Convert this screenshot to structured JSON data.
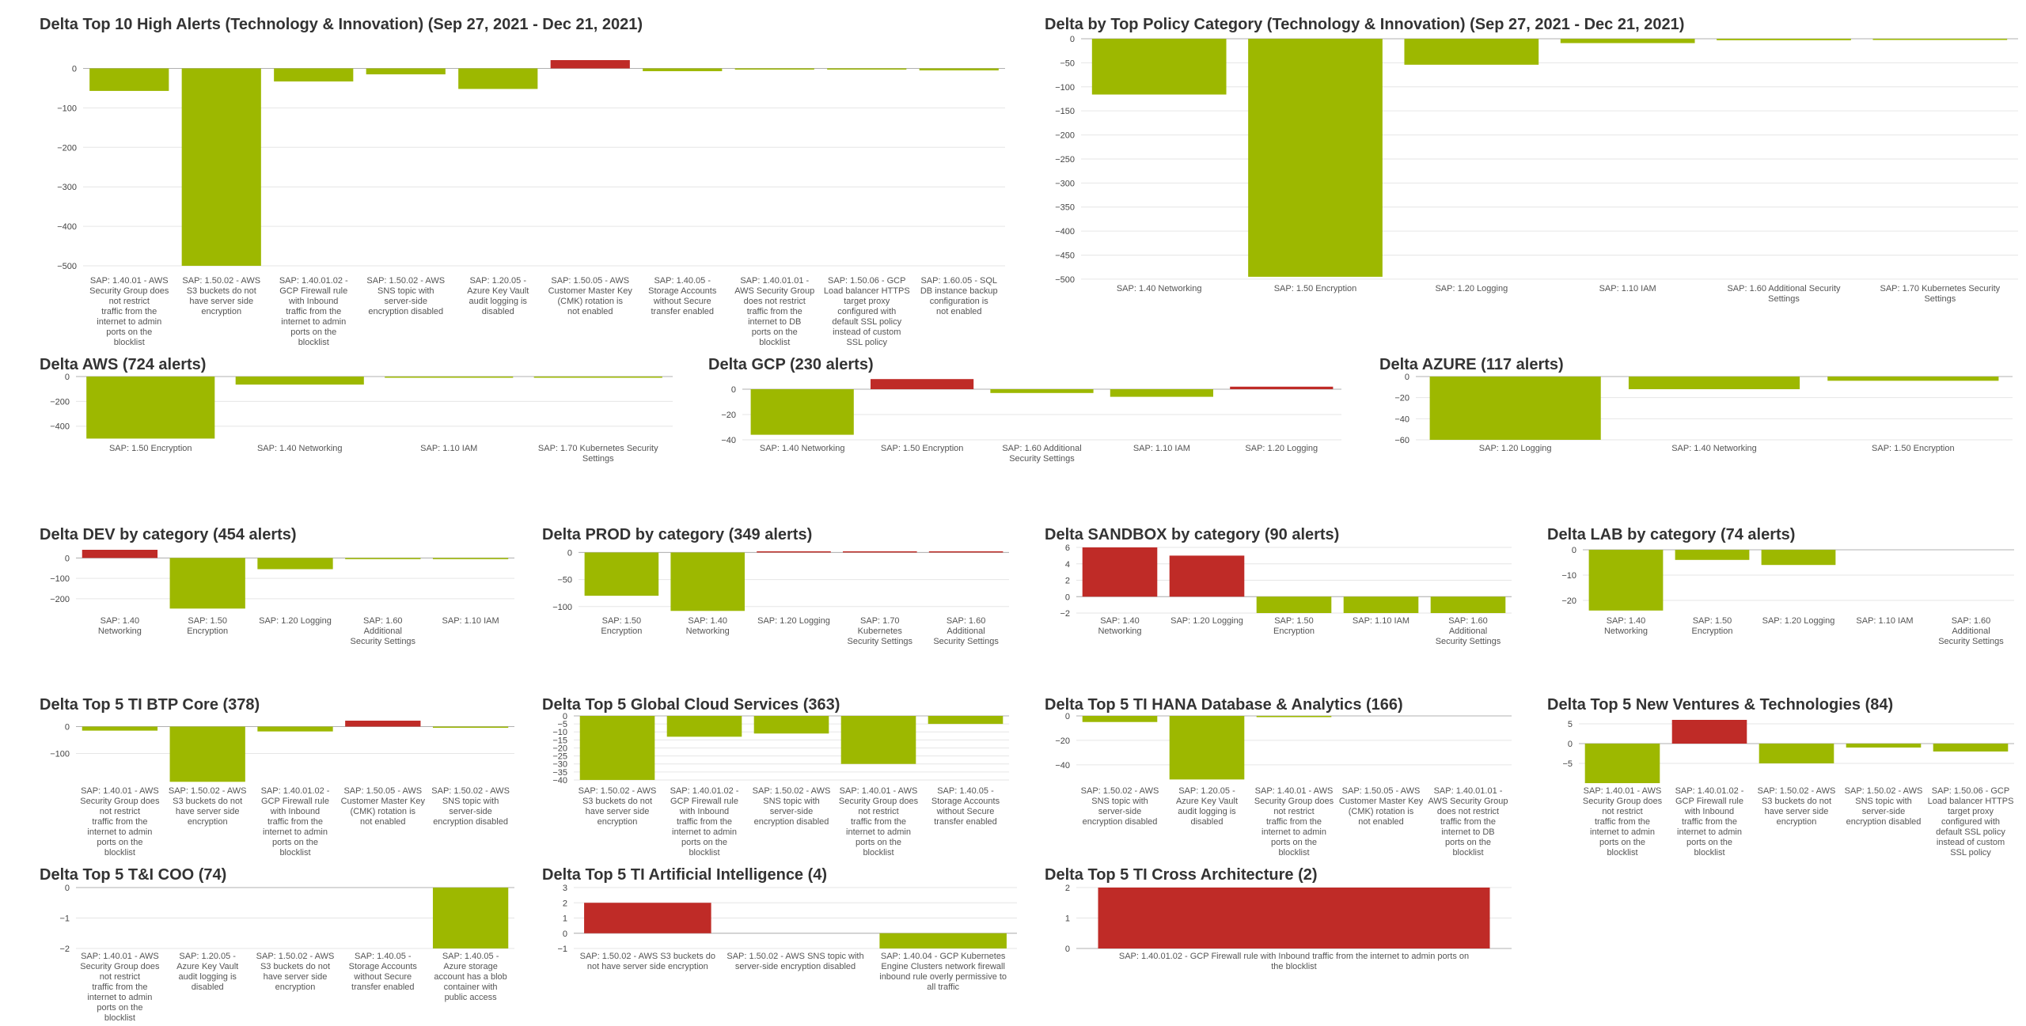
{
  "colors": {
    "negative": "#9db800",
    "positive": "#bf2b27",
    "grid": "#e6e6e6",
    "baseline": "#b0b0b0"
  },
  "chart_data": [
    {
      "type": "bar",
      "title": "Delta Top 10 High Alerts (Technology & Innovation) (Sep 27, 2021 - Dec 21, 2021)",
      "categories": [
        "SAP: 1.40.01 - AWS Security Group does not restrict traffic from the internet to admin ports on the blocklist",
        "SAP: 1.50.02 - AWS S3 buckets do not have server side encryption",
        "SAP: 1.40.01.02 - GCP Firewall rule with Inbound traffic from the internet to admin ports on the blocklist",
        "SAP: 1.50.02 - AWS SNS topic with server-side encryption disabled",
        "SAP: 1.20.05 - Azure Key Vault audit logging is disabled",
        "SAP: 1.50.05 - AWS Customer Master Key (CMK) rotation is not enabled",
        "SAP: 1.40.05 - Storage Accounts without Secure transfer enabled",
        "SAP: 1.40.01.01 - AWS Security Group does not restrict traffic from the internet to DB ports on the blocklist",
        "SAP: 1.50.06 - GCP Load balancer HTTPS target proxy configured with default SSL policy instead of custom SSL policy",
        "SAP: 1.60.05 - SQL DB instance backup configuration is not enabled"
      ],
      "values": [
        -57,
        -500,
        -33,
        -15,
        -52,
        21,
        -7,
        -2,
        -2,
        -5
      ],
      "yticks": [
        0,
        -100,
        -200,
        -300,
        -400,
        -500
      ]
    },
    {
      "type": "bar",
      "title": "Delta by Top Policy Category (Technology & Innovation) (Sep 27, 2021 - Dec 21, 2021)",
      "categories": [
        "SAP: 1.40 Networking",
        "SAP: 1.50 Encryption",
        "SAP: 1.20 Logging",
        "SAP: 1.10 IAM",
        "SAP: 1.60 Additional Security Settings",
        "SAP: 1.70 Kubernetes Security Settings"
      ],
      "values": [
        -116,
        -495,
        -54,
        -9,
        -3,
        -1
      ],
      "yticks": [
        0,
        -50,
        -100,
        -150,
        -200,
        -250,
        -300,
        -350,
        -400,
        -450,
        -500
      ]
    },
    {
      "type": "bar",
      "title": "Delta AWS (724 alerts)",
      "categories": [
        "SAP: 1.50 Encryption",
        "SAP: 1.40 Networking",
        "SAP: 1.10 IAM",
        "SAP: 1.70 Kubernetes Security Settings"
      ],
      "values": [
        -500,
        -65,
        -5,
        -2
      ],
      "yticks": [
        0,
        -200,
        -400
      ]
    },
    {
      "type": "bar",
      "title": "Delta GCP (230 alerts)",
      "categories": [
        "SAP: 1.40 Networking",
        "SAP: 1.50 Encryption",
        "SAP: 1.60 Additional Security Settings",
        "SAP: 1.10 IAM",
        "SAP: 1.20 Logging"
      ],
      "values": [
        -36,
        8,
        -3,
        -6,
        2
      ],
      "yticks": [
        0,
        -20,
        -40
      ]
    },
    {
      "type": "bar",
      "title": "Delta AZURE (117 alerts)",
      "categories": [
        "SAP: 1.20 Logging",
        "SAP: 1.40 Networking",
        "SAP: 1.50 Encryption"
      ],
      "values": [
        -60,
        -12,
        -4
      ],
      "yticks": [
        0,
        -20,
        -40,
        -60
      ]
    },
    {
      "type": "bar",
      "title": "Delta DEV by category (454 alerts)",
      "categories": [
        "SAP: 1.40 Networking",
        "SAP: 1.50 Encryption",
        "SAP: 1.20 Logging",
        "SAP: 1.60 Additional Security Settings",
        "SAP: 1.10 IAM"
      ],
      "values": [
        40,
        -248,
        -55,
        -4,
        -1
      ],
      "yticks": [
        0,
        -100,
        -200
      ]
    },
    {
      "type": "bar",
      "title": "Delta PROD by category (349 alerts)",
      "categories": [
        "SAP: 1.50 Encryption",
        "SAP: 1.40 Networking",
        "SAP: 1.20 Logging",
        "SAP: 1.70 Kubernetes Security Settings",
        "SAP: 1.60 Additional Security Settings"
      ],
      "values": [
        -80,
        -108,
        2,
        1,
        1
      ],
      "yticks": [
        0,
        -50,
        -100
      ]
    },
    {
      "type": "bar",
      "title": "Delta SANDBOX by category (90 alerts)",
      "categories": [
        "SAP: 1.40 Networking",
        "SAP: 1.20 Logging",
        "SAP: 1.50 Encryption",
        "SAP: 1.10 IAM",
        "SAP: 1.60 Additional Security Settings"
      ],
      "values": [
        6,
        5,
        -2,
        -2,
        -2
      ],
      "yticks": [
        6,
        4,
        2,
        0,
        -2
      ]
    },
    {
      "type": "bar",
      "title": "Delta LAB by category (74 alerts)",
      "categories": [
        "SAP: 1.40 Networking",
        "SAP: 1.50 Encryption",
        "SAP: 1.20 Logging",
        "SAP: 1.10 IAM",
        "SAP: 1.60 Additional Security Settings"
      ],
      "values": [
        -24,
        -4,
        -6,
        0,
        0
      ],
      "yticks": [
        0,
        -10,
        -20
      ]
    },
    {
      "type": "bar",
      "title": "Delta Top 5 TI BTP Core (378)",
      "categories": [
        "SAP: 1.40.01 - AWS Security Group does not restrict traffic from the internet to admin ports on the blocklist",
        "SAP: 1.50.02 - AWS S3 buckets do not have server side encryption",
        "SAP: 1.40.01.02 - GCP Firewall rule with Inbound traffic from the internet to admin ports on the blocklist",
        "SAP: 1.50.05 - AWS Customer Master Key (CMK) rotation is not enabled",
        "SAP: 1.50.02 - AWS SNS topic with server-side encryption disabled"
      ],
      "values": [
        -15,
        -205,
        -18,
        22,
        -3
      ],
      "yticks": [
        0,
        -100
      ]
    },
    {
      "type": "bar",
      "title": "Delta Top 5 Global Cloud Services (363)",
      "categories": [
        "SAP: 1.50.02 - AWS S3 buckets do not have server side encryption",
        "SAP: 1.40.01.02 - GCP Firewall rule with Inbound traffic from the internet to admin ports on the blocklist",
        "SAP: 1.50.02 - AWS SNS topic with server-side encryption disabled",
        "SAP: 1.40.01 - AWS Security Group does not restrict traffic from the internet to admin ports on the blocklist",
        "SAP: 1.40.05 - Storage Accounts without Secure transfer enabled"
      ],
      "values": [
        -40,
        -13,
        -11,
        -30,
        -5
      ],
      "yticks": [
        0,
        -5,
        -10,
        -15,
        -20,
        -25,
        -30,
        -35,
        -40
      ]
    },
    {
      "type": "bar",
      "title": "Delta Top 5 TI HANA Database & Analytics (166)",
      "categories": [
        "SAP: 1.50.02 - AWS SNS topic with server-side encryption disabled",
        "SAP: 1.20.05 - Azure Key Vault audit logging is disabled",
        "SAP: 1.40.01 - AWS Security Group does not restrict traffic from the internet to admin ports on the blocklist",
        "SAP: 1.50.05 - AWS Customer Master Key (CMK) rotation is not enabled",
        "SAP: 1.40.01.01 - AWS Security Group does not restrict traffic from the internet to DB ports on the blocklist"
      ],
      "values": [
        -5,
        -52,
        -1,
        0,
        0
      ],
      "yticks": [
        0,
        -20,
        -40
      ]
    },
    {
      "type": "bar",
      "title": "Delta Top 5 New Ventures & Technologies (84)",
      "categories": [
        "SAP: 1.40.01 - AWS Security Group does not restrict traffic from the internet to admin ports on the blocklist",
        "SAP: 1.40.01.02 - GCP Firewall rule with Inbound traffic from the internet to admin ports on the blocklist",
        "SAP: 1.50.02 - AWS S3 buckets do not have server side encryption",
        "SAP: 1.50.02 - AWS SNS topic with server-side encryption disabled",
        "SAP: 1.50.06 - GCP Load balancer HTTPS target proxy configured with default SSL policy instead of custom SSL policy"
      ],
      "values": [
        -10,
        6,
        -5,
        -1,
        -2
      ],
      "yticks": [
        5,
        0,
        -5
      ]
    },
    {
      "type": "bar",
      "title": "Delta Top 5 T&I COO (74)",
      "categories": [
        "SAP: 1.40.01 - AWS Security Group does not restrict traffic from the internet to admin ports on the blocklist",
        "SAP: 1.20.05 - Azure Key Vault audit logging is disabled",
        "SAP: 1.50.02 - AWS S3 buckets do not have server side encryption",
        "SAP: 1.40.05 - Storage Accounts without Secure transfer enabled",
        "SAP: 1.40.05 - Azure storage account has a blob container with public access"
      ],
      "values": [
        0,
        0,
        0,
        0,
        -2
      ],
      "yticks": [
        0,
        -1,
        -2
      ]
    },
    {
      "type": "bar",
      "title": "Delta Top 5 TI Artificial Intelligence (4)",
      "categories": [
        "SAP: 1.50.02 - AWS S3 buckets do not have server side encryption",
        "SAP: 1.50.02 - AWS SNS topic with server-side encryption disabled",
        "SAP: 1.40.04 - GCP Kubernetes Engine Clusters network firewall inbound rule overly permissive to all traffic"
      ],
      "values": [
        2,
        0,
        -1
      ],
      "yticks": [
        3,
        2,
        1,
        0,
        -1
      ]
    },
    {
      "type": "bar",
      "title": "Delta Top 5 TI Cross Architecture (2)",
      "categories": [
        "SAP: 1.40.01.02 - GCP Firewall rule with Inbound traffic from the internet to admin ports on the blocklist"
      ],
      "values": [
        2
      ],
      "yticks": [
        2,
        1,
        0
      ]
    }
  ]
}
